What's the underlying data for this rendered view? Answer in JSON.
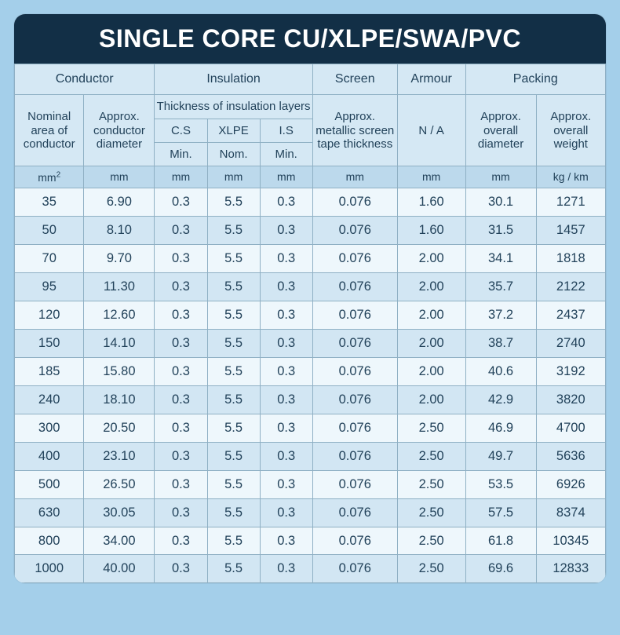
{
  "title": "SINGLE CORE CU/XLPE/SWA/PVC",
  "colors": {
    "page_bg": "#a4cfea",
    "card_bg": "#d5e8f4",
    "title_bg": "#122f46",
    "title_fg": "#ffffff",
    "border": "#8fb0c4",
    "text": "#22425a",
    "units_bg": "#bcd9ec",
    "row_odd": "#eef7fc",
    "row_even": "#d2e6f3"
  },
  "header": {
    "groups": {
      "conductor": "Conductor",
      "insulation": "Insulation",
      "screen": "Screen",
      "armour": "Armour",
      "packing": "Packing"
    },
    "spanner": "Thickness of insulation layers",
    "leaf": {
      "nominal_area": "Nominal area of conductor",
      "cond_diam": "Approx. conductor diameter",
      "cs": "C.S",
      "xlpe": "XLPE",
      "is": "I.S",
      "screen_thick": "Approx. metallic screen tape thickness",
      "armour_na": "N / A",
      "overall_diam": "Approx. overall diameter",
      "overall_weight": "Approx. overall weight"
    },
    "subleaf": {
      "cs_min": "Min.",
      "xlpe_nom": "Nom.",
      "is_min": "Min."
    },
    "units": {
      "nominal_area": "mm²",
      "cond_diam": "mm",
      "cs": "mm",
      "xlpe": "mm",
      "is": "mm",
      "screen": "mm",
      "armour": "mm",
      "overall_diam": "mm",
      "weight": "kg / km"
    }
  },
  "rows": [
    [
      "35",
      "6.90",
      "0.3",
      "5.5",
      "0.3",
      "0.076",
      "1.60",
      "30.1",
      "1271"
    ],
    [
      "50",
      "8.10",
      "0.3",
      "5.5",
      "0.3",
      "0.076",
      "1.60",
      "31.5",
      "1457"
    ],
    [
      "70",
      "9.70",
      "0.3",
      "5.5",
      "0.3",
      "0.076",
      "2.00",
      "34.1",
      "1818"
    ],
    [
      "95",
      "11.30",
      "0.3",
      "5.5",
      "0.3",
      "0.076",
      "2.00",
      "35.7",
      "2122"
    ],
    [
      "120",
      "12.60",
      "0.3",
      "5.5",
      "0.3",
      "0.076",
      "2.00",
      "37.2",
      "2437"
    ],
    [
      "150",
      "14.10",
      "0.3",
      "5.5",
      "0.3",
      "0.076",
      "2.00",
      "38.7",
      "2740"
    ],
    [
      "185",
      "15.80",
      "0.3",
      "5.5",
      "0.3",
      "0.076",
      "2.00",
      "40.6",
      "3192"
    ],
    [
      "240",
      "18.10",
      "0.3",
      "5.5",
      "0.3",
      "0.076",
      "2.00",
      "42.9",
      "3820"
    ],
    [
      "300",
      "20.50",
      "0.3",
      "5.5",
      "0.3",
      "0.076",
      "2.50",
      "46.9",
      "4700"
    ],
    [
      "400",
      "23.10",
      "0.3",
      "5.5",
      "0.3",
      "0.076",
      "2.50",
      "49.7",
      "5636"
    ],
    [
      "500",
      "26.50",
      "0.3",
      "5.5",
      "0.3",
      "0.076",
      "2.50",
      "53.5",
      "6926"
    ],
    [
      "630",
      "30.05",
      "0.3",
      "5.5",
      "0.3",
      "0.076",
      "2.50",
      "57.5",
      "8374"
    ],
    [
      "800",
      "34.00",
      "0.3",
      "5.5",
      "0.3",
      "0.076",
      "2.50",
      "61.8",
      "10345"
    ],
    [
      "1000",
      "40.00",
      "0.3",
      "5.5",
      "0.3",
      "0.076",
      "2.50",
      "69.6",
      "12833"
    ]
  ],
  "col_widths_pct": [
    10.8,
    11.0,
    8.2,
    8.2,
    8.2,
    13.2,
    10.6,
    11.0,
    10.8
  ]
}
